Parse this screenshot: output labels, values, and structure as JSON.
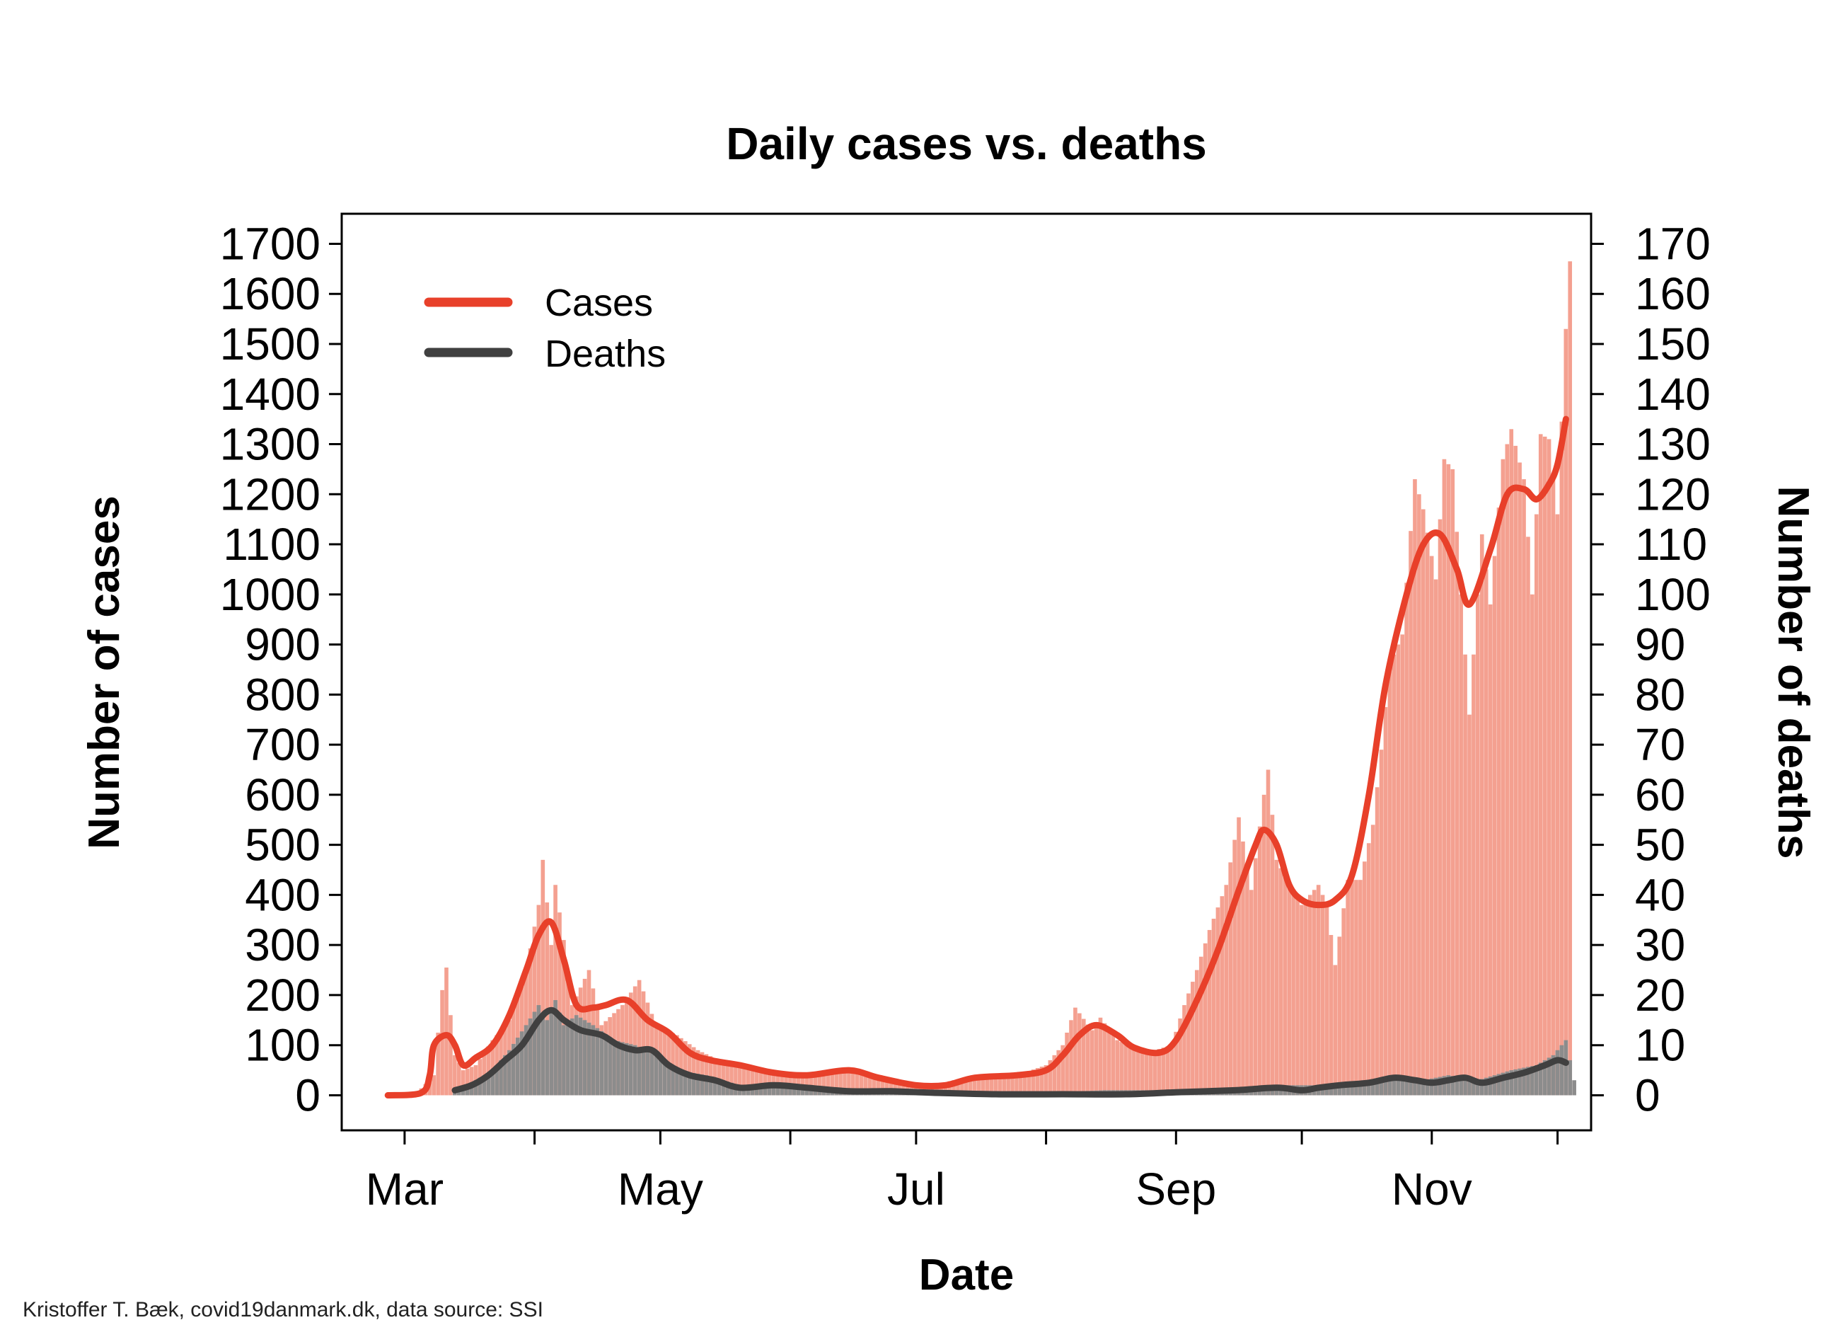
{
  "chart_data": {
    "type": "bar",
    "title": "Daily cases vs. deaths",
    "xlabel": "Date",
    "ylabel": "Number of cases",
    "ylabel_right": "Number of deaths",
    "credit": "Kristoffer T. Bæk, covid19danmark.dk, data source: SSI",
    "x_range": [
      "2020-02-15",
      "2020-12-09"
    ],
    "ylim": [
      -70,
      1760
    ],
    "ylim_right": [
      -7,
      176
    ],
    "y_ticks": [
      0,
      100,
      200,
      300,
      400,
      500,
      600,
      700,
      800,
      900,
      1000,
      1100,
      1200,
      1300,
      1400,
      1500,
      1600,
      1700
    ],
    "y_ticks_right": [
      0,
      10,
      20,
      30,
      40,
      50,
      60,
      70,
      80,
      90,
      100,
      110,
      120,
      130,
      140,
      150,
      160,
      170
    ],
    "x_ticks": [
      {
        "date": "2020-03-01",
        "label": "Mar"
      },
      {
        "date": "2020-04-01",
        "label": ""
      },
      {
        "date": "2020-05-01",
        "label": "May"
      },
      {
        "date": "2020-06-01",
        "label": ""
      },
      {
        "date": "2020-07-01",
        "label": "Jul"
      },
      {
        "date": "2020-08-01",
        "label": ""
      },
      {
        "date": "2020-09-01",
        "label": "Sep"
      },
      {
        "date": "2020-10-01",
        "label": ""
      },
      {
        "date": "2020-11-01",
        "label": "Nov"
      },
      {
        "date": "2020-12-01",
        "label": ""
      }
    ],
    "legend": {
      "position": "top-left",
      "entries": [
        {
          "label": "Cases",
          "color": "#e8402a"
        },
        {
          "label": "Deaths",
          "color": "#404040"
        }
      ]
    },
    "colors": {
      "cases_bar": "#f4a090",
      "cases_line": "#e8402a",
      "deaths_bar": "#8c8c8c",
      "deaths_line": "#404040"
    },
    "series": [
      {
        "name": "Cases",
        "axis": "left",
        "style": "bars+smoothed-line",
        "daily_anchors": [
          [
            "2020-02-27",
            0
          ],
          [
            "2020-03-04",
            5
          ],
          [
            "2020-03-08",
            40
          ],
          [
            "2020-03-10",
            210
          ],
          [
            "2020-03-11",
            255
          ],
          [
            "2020-03-12",
            160
          ],
          [
            "2020-03-13",
            80
          ],
          [
            "2020-03-15",
            50
          ],
          [
            "2020-03-18",
            60
          ],
          [
            "2020-03-22",
            110
          ],
          [
            "2020-03-26",
            150
          ],
          [
            "2020-03-30",
            250
          ],
          [
            "2020-04-02",
            380
          ],
          [
            "2020-04-03",
            470
          ],
          [
            "2020-04-05",
            300
          ],
          [
            "2020-04-06",
            420
          ],
          [
            "2020-04-08",
            310
          ],
          [
            "2020-04-10",
            180
          ],
          [
            "2020-04-14",
            250
          ],
          [
            "2020-04-17",
            140
          ],
          [
            "2020-04-22",
            180
          ],
          [
            "2020-04-26",
            230
          ],
          [
            "2020-04-30",
            140
          ],
          [
            "2020-05-05",
            120
          ],
          [
            "2020-05-10",
            90
          ],
          [
            "2020-05-15",
            70
          ],
          [
            "2020-05-25",
            50
          ],
          [
            "2020-06-05",
            45
          ],
          [
            "2020-06-15",
            50
          ],
          [
            "2020-06-25",
            25
          ],
          [
            "2020-07-05",
            20
          ],
          [
            "2020-07-15",
            40
          ],
          [
            "2020-07-25",
            40
          ],
          [
            "2020-08-01",
            60
          ],
          [
            "2020-08-05",
            100
          ],
          [
            "2020-08-08",
            175
          ],
          [
            "2020-08-12",
            130
          ],
          [
            "2020-08-14",
            155
          ],
          [
            "2020-08-18",
            110
          ],
          [
            "2020-08-25",
            85
          ],
          [
            "2020-08-31",
            100
          ],
          [
            "2020-09-03",
            180
          ],
          [
            "2020-09-06",
            250
          ],
          [
            "2020-09-09",
            330
          ],
          [
            "2020-09-13",
            420
          ],
          [
            "2020-09-16",
            555
          ],
          [
            "2020-09-19",
            410
          ],
          [
            "2020-09-22",
            600
          ],
          [
            "2020-09-23",
            650
          ],
          [
            "2020-09-25",
            470
          ],
          [
            "2020-09-28",
            420
          ],
          [
            "2020-10-01",
            380
          ],
          [
            "2020-10-05",
            420
          ],
          [
            "2020-10-07",
            380
          ],
          [
            "2020-10-09",
            260
          ],
          [
            "2020-10-12",
            430
          ],
          [
            "2020-10-15",
            430
          ],
          [
            "2020-10-18",
            540
          ],
          [
            "2020-10-20",
            690
          ],
          [
            "2020-10-22",
            860
          ],
          [
            "2020-10-25",
            920
          ],
          [
            "2020-10-28",
            1230
          ],
          [
            "2020-10-30",
            1170
          ],
          [
            "2020-11-02",
            1030
          ],
          [
            "2020-11-04",
            1270
          ],
          [
            "2020-11-06",
            1250
          ],
          [
            "2020-11-08",
            1000
          ],
          [
            "2020-11-10",
            760
          ],
          [
            "2020-11-13",
            1120
          ],
          [
            "2020-11-15",
            980
          ],
          [
            "2020-11-18",
            1270
          ],
          [
            "2020-11-20",
            1330
          ],
          [
            "2020-11-23",
            1230
          ],
          [
            "2020-11-25",
            1000
          ],
          [
            "2020-11-27",
            1320
          ],
          [
            "2020-11-29",
            1310
          ],
          [
            "2020-12-01",
            1160
          ],
          [
            "2020-12-03",
            1530
          ],
          [
            "2020-12-04",
            1665
          ]
        ],
        "smoothed_anchors": [
          [
            "2020-02-26",
            0
          ],
          [
            "2020-03-05",
            5
          ],
          [
            "2020-03-07",
            40
          ],
          [
            "2020-03-08",
            100
          ],
          [
            "2020-03-11",
            120
          ],
          [
            "2020-03-13",
            100
          ],
          [
            "2020-03-15",
            60
          ],
          [
            "2020-03-18",
            75
          ],
          [
            "2020-03-22",
            100
          ],
          [
            "2020-03-26",
            160
          ],
          [
            "2020-03-30",
            250
          ],
          [
            "2020-04-02",
            320
          ],
          [
            "2020-04-05",
            345
          ],
          [
            "2020-04-08",
            270
          ],
          [
            "2020-04-11",
            180
          ],
          [
            "2020-04-15",
            175
          ],
          [
            "2020-04-18",
            180
          ],
          [
            "2020-04-23",
            190
          ],
          [
            "2020-04-28",
            150
          ],
          [
            "2020-05-03",
            125
          ],
          [
            "2020-05-08",
            85
          ],
          [
            "2020-05-13",
            70
          ],
          [
            "2020-05-20",
            60
          ],
          [
            "2020-05-28",
            45
          ],
          [
            "2020-06-05",
            40
          ],
          [
            "2020-06-15",
            50
          ],
          [
            "2020-06-22",
            35
          ],
          [
            "2020-07-01",
            20
          ],
          [
            "2020-07-08",
            20
          ],
          [
            "2020-07-15",
            35
          ],
          [
            "2020-07-25",
            40
          ],
          [
            "2020-08-01",
            50
          ],
          [
            "2020-08-05",
            80
          ],
          [
            "2020-08-09",
            120
          ],
          [
            "2020-08-13",
            140
          ],
          [
            "2020-08-18",
            120
          ],
          [
            "2020-08-22",
            95
          ],
          [
            "2020-08-28",
            85
          ],
          [
            "2020-09-01",
            110
          ],
          [
            "2020-09-06",
            190
          ],
          [
            "2020-09-11",
            290
          ],
          [
            "2020-09-16",
            410
          ],
          [
            "2020-09-20",
            500
          ],
          [
            "2020-09-22",
            530
          ],
          [
            "2020-09-25",
            500
          ],
          [
            "2020-09-28",
            420
          ],
          [
            "2020-10-01",
            390
          ],
          [
            "2020-10-05",
            380
          ],
          [
            "2020-10-09",
            390
          ],
          [
            "2020-10-13",
            440
          ],
          [
            "2020-10-17",
            600
          ],
          [
            "2020-10-21",
            820
          ],
          [
            "2020-10-26",
            1000
          ],
          [
            "2020-10-30",
            1100
          ],
          [
            "2020-11-03",
            1120
          ],
          [
            "2020-11-07",
            1050
          ],
          [
            "2020-11-10",
            980
          ],
          [
            "2020-11-15",
            1090
          ],
          [
            "2020-11-19",
            1200
          ],
          [
            "2020-11-23",
            1210
          ],
          [
            "2020-11-26",
            1190
          ],
          [
            "2020-11-29",
            1220
          ],
          [
            "2020-12-01",
            1260
          ],
          [
            "2020-12-03",
            1350
          ]
        ]
      },
      {
        "name": "Deaths",
        "axis": "right",
        "style": "bars+smoothed-line",
        "daily_anchors": [
          [
            "2020-03-13",
            1
          ],
          [
            "2020-03-18",
            3
          ],
          [
            "2020-03-22",
            5
          ],
          [
            "2020-03-26",
            9
          ],
          [
            "2020-03-30",
            14
          ],
          [
            "2020-04-02",
            18
          ],
          [
            "2020-04-04",
            15
          ],
          [
            "2020-04-06",
            19
          ],
          [
            "2020-04-08",
            14
          ],
          [
            "2020-04-11",
            16
          ],
          [
            "2020-04-15",
            14
          ],
          [
            "2020-04-20",
            11
          ],
          [
            "2020-04-25",
            10
          ],
          [
            "2020-04-30",
            8
          ],
          [
            "2020-05-05",
            5
          ],
          [
            "2020-05-12",
            4
          ],
          [
            "2020-05-20",
            2
          ],
          [
            "2020-06-01",
            2
          ],
          [
            "2020-06-10",
            1
          ],
          [
            "2020-06-20",
            1
          ],
          [
            "2020-07-01",
            0.5
          ],
          [
            "2020-07-15",
            0.5
          ],
          [
            "2020-08-01",
            0.5
          ],
          [
            "2020-08-15",
            1
          ],
          [
            "2020-09-01",
            1
          ],
          [
            "2020-09-15",
            1
          ],
          [
            "2020-09-25",
            2
          ],
          [
            "2020-10-05",
            2
          ],
          [
            "2020-10-15",
            2
          ],
          [
            "2020-10-22",
            4
          ],
          [
            "2020-10-30",
            3
          ],
          [
            "2020-11-05",
            4
          ],
          [
            "2020-11-12",
            3
          ],
          [
            "2020-11-20",
            5
          ],
          [
            "2020-11-26",
            6
          ],
          [
            "2020-11-30",
            8
          ],
          [
            "2020-12-03",
            11
          ],
          [
            "2020-12-04",
            7
          ],
          [
            "2020-12-05",
            3
          ]
        ],
        "smoothed_anchors": [
          [
            "2020-03-13",
            1
          ],
          [
            "2020-03-17",
            2
          ],
          [
            "2020-03-21",
            4
          ],
          [
            "2020-03-25",
            7
          ],
          [
            "2020-03-29",
            10
          ],
          [
            "2020-04-02",
            15
          ],
          [
            "2020-04-05",
            17
          ],
          [
            "2020-04-08",
            15
          ],
          [
            "2020-04-12",
            13
          ],
          [
            "2020-04-17",
            12
          ],
          [
            "2020-04-21",
            10
          ],
          [
            "2020-04-25",
            9
          ],
          [
            "2020-04-29",
            9
          ],
          [
            "2020-05-03",
            6
          ],
          [
            "2020-05-08",
            4
          ],
          [
            "2020-05-14",
            3
          ],
          [
            "2020-05-20",
            1.5
          ],
          [
            "2020-05-28",
            2
          ],
          [
            "2020-06-05",
            1.5
          ],
          [
            "2020-06-15",
            0.8
          ],
          [
            "2020-06-25",
            0.8
          ],
          [
            "2020-07-05",
            0.5
          ],
          [
            "2020-07-20",
            0.2
          ],
          [
            "2020-08-05",
            0.2
          ],
          [
            "2020-08-20",
            0.2
          ],
          [
            "2020-09-01",
            0.6
          ],
          [
            "2020-09-15",
            1
          ],
          [
            "2020-09-25",
            1.5
          ],
          [
            "2020-10-01",
            1
          ],
          [
            "2020-10-05",
            1.5
          ],
          [
            "2020-10-10",
            2
          ],
          [
            "2020-10-17",
            2.5
          ],
          [
            "2020-10-23",
            3.5
          ],
          [
            "2020-10-28",
            3
          ],
          [
            "2020-11-01",
            2.5
          ],
          [
            "2020-11-05",
            3
          ],
          [
            "2020-11-09",
            3.5
          ],
          [
            "2020-11-13",
            2.5
          ],
          [
            "2020-11-18",
            3.5
          ],
          [
            "2020-11-23",
            4.5
          ],
          [
            "2020-11-28",
            6
          ],
          [
            "2020-12-01",
            7
          ],
          [
            "2020-12-03",
            6.5
          ]
        ]
      }
    ]
  }
}
